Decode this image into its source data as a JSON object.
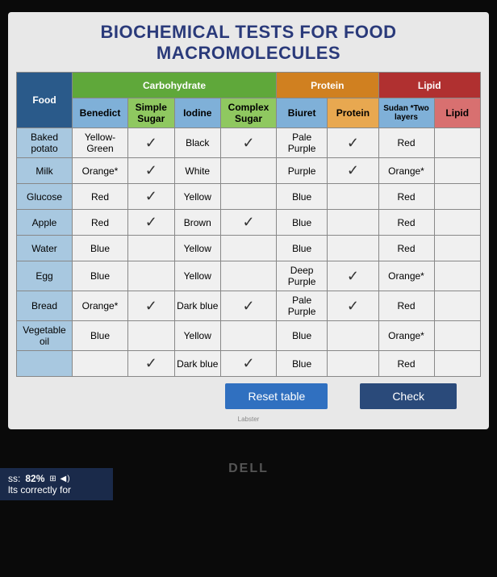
{
  "title": "BIOCHEMICAL TESTS FOR FOOD MACROMOLECULES",
  "headers": {
    "food": "Food",
    "carb": "Carbohydrate",
    "protein": "Protein",
    "lipid": "Lipid"
  },
  "subheaders": {
    "benedict": "Benedict",
    "simple_sugar": "Simple Sugar",
    "iodine": "Iodine",
    "complex_sugar": "Complex Sugar",
    "biuret": "Biuret",
    "protein": "Protein",
    "sudan": "Sudan *Two layers",
    "lipid": "Lipid"
  },
  "rows": [
    {
      "food": "Baked potato",
      "benedict": "Yellow-Green",
      "simple": "✓",
      "iodine": "Black",
      "complex": "✓",
      "biuret": "Pale Purple",
      "protein": "✓",
      "sudan": "Red",
      "lipid": ""
    },
    {
      "food": "Milk",
      "benedict": "Orange*",
      "simple": "✓",
      "iodine": "White",
      "complex": "",
      "biuret": "Purple",
      "protein": "✓",
      "sudan": "Orange*",
      "lipid": ""
    },
    {
      "food": "Glucose",
      "benedict": "Red",
      "simple": "✓",
      "iodine": "Yellow",
      "complex": "",
      "biuret": "Blue",
      "protein": "",
      "sudan": "Red",
      "lipid": ""
    },
    {
      "food": "Apple",
      "benedict": "Red",
      "simple": "✓",
      "iodine": "Brown",
      "complex": "✓",
      "biuret": "Blue",
      "protein": "",
      "sudan": "Red",
      "lipid": ""
    },
    {
      "food": "Water",
      "benedict": "Blue",
      "simple": "",
      "iodine": "Yellow",
      "complex": "",
      "biuret": "Blue",
      "protein": "",
      "sudan": "Red",
      "lipid": ""
    },
    {
      "food": "Egg",
      "benedict": "Blue",
      "simple": "",
      "iodine": "Yellow",
      "complex": "",
      "biuret": "Deep Purple",
      "protein": "✓",
      "sudan": "Orange*",
      "lipid": ""
    },
    {
      "food": "Bread",
      "benedict": "Orange*",
      "simple": "✓",
      "iodine": "Dark blue",
      "complex": "✓",
      "biuret": "Pale Purple",
      "protein": "✓",
      "sudan": "Red",
      "lipid": ""
    },
    {
      "food": "Vegetable oil",
      "benedict": "Blue",
      "simple": "",
      "iodine": "Yellow",
      "complex": "",
      "biuret": "Blue",
      "protein": "",
      "sudan": "Orange*",
      "lipid": ""
    },
    {
      "food": "",
      "benedict": "",
      "simple": "✓",
      "iodine": "Dark blue",
      "complex": "✓",
      "biuret": "Blue",
      "protein": "",
      "sudan": "Red",
      "lipid": ""
    }
  ],
  "buttons": {
    "reset": "Reset table",
    "check": "Check"
  },
  "overlay": {
    "progress_label": "ss:",
    "progress_value": "82%",
    "hint": "lts correctly for"
  },
  "small_label": "Labster",
  "brand": "DELL",
  "colors": {
    "title": "#2a3a7a",
    "hdr_food": "#2a5a8a",
    "hdr_carb": "#5fa83a",
    "hdr_prot": "#d08020",
    "hdr_lipid": "#b03030",
    "btn_reset": "#3070c0",
    "btn_check": "#2a4a7a"
  }
}
